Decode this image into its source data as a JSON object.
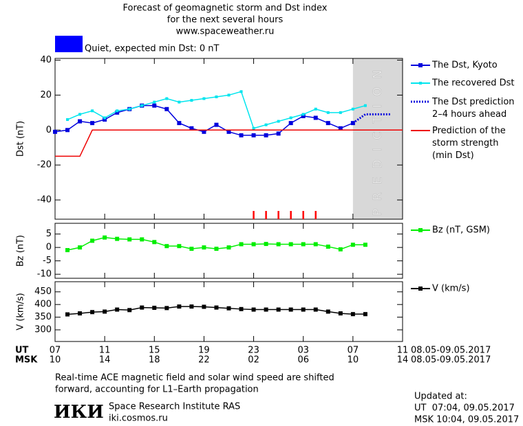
{
  "header": {
    "lines": [
      "Forecast of geomagnetic storm and Dst index",
      "for the next several hours",
      "www.spaceweather.ru"
    ],
    "status": {
      "color": "#0000ff",
      "text": "Quiet, expected min Dst: 0 nT"
    }
  },
  "chart_data": [
    {
      "type": "line",
      "ylabel": "Dst (nT)",
      "xlim": [
        0,
        28
      ],
      "ylim": [
        -51,
        41
      ],
      "yticks": [
        -40,
        -20,
        0,
        20,
        40
      ],
      "prediction_region": {
        "x": [
          24,
          28
        ],
        "label": "PREDICTION",
        "color": "#d8d8d8"
      },
      "storm_markers": {
        "color": "#ff0000",
        "x": [
          16,
          17,
          18,
          19,
          20,
          21
        ]
      },
      "series": [
        {
          "name": "The Dst, Kyoto",
          "color": "#0000dd",
          "marker": "square",
          "x": [
            0,
            1,
            2,
            3,
            4,
            5,
            6,
            7,
            8,
            9,
            10,
            11,
            12,
            13,
            14,
            15,
            16,
            17,
            18,
            19,
            20,
            21,
            22,
            23,
            24
          ],
          "values": [
            -1,
            0,
            5,
            4,
            6,
            10,
            12,
            14,
            14,
            12,
            4,
            1,
            -1,
            3,
            -1,
            -3,
            -3,
            -3,
            -2,
            4,
            8,
            7,
            4,
            1,
            4
          ]
        },
        {
          "name": "The recovered Dst",
          "color": "#00e5ee",
          "marker": "small-square",
          "x": [
            1,
            2,
            3,
            4,
            5,
            6,
            7,
            8,
            9,
            10,
            11,
            12,
            13,
            14,
            15,
            16,
            17,
            18,
            19,
            20,
            21,
            22,
            23,
            24,
            25
          ],
          "values": [
            6,
            9,
            11,
            7,
            11,
            12,
            14,
            16,
            18,
            16,
            17,
            18,
            19,
            20,
            22,
            1,
            3,
            5,
            7,
            9,
            12,
            10,
            10,
            12,
            14
          ]
        },
        {
          "name": "The Dst prediction\n2–4 hours ahead",
          "color": "#0000dd",
          "marker": "none",
          "dash": true,
          "x": [
            24,
            25,
            26,
            27
          ],
          "values": [
            4,
            9,
            9,
            9
          ]
        },
        {
          "name": "Prediction of the\nstorm strength\n(min Dst)",
          "color": "#ee0000",
          "marker": "none",
          "x": [
            0,
            2,
            3,
            28
          ],
          "values": [
            -15,
            -15,
            0,
            0
          ]
        }
      ]
    },
    {
      "type": "line",
      "ylabel": "Bz (nT)",
      "xlim": [
        0,
        28
      ],
      "ylim": [
        -11.5,
        9
      ],
      "yticks": [
        -10,
        -5,
        0,
        5
      ],
      "series": [
        {
          "name": "Bz (nT, GSM)",
          "color": "#00ee00",
          "marker": "square",
          "x": [
            1,
            2,
            3,
            4,
            5,
            6,
            7,
            8,
            9,
            10,
            11,
            12,
            13,
            14,
            15,
            16,
            17,
            18,
            19,
            20,
            21,
            22,
            23,
            24,
            25
          ],
          "values": [
            -1,
            0,
            2.5,
            3.7,
            3.2,
            3,
            3,
            2,
            0.5,
            0.5,
            -0.5,
            0,
            -0.5,
            0,
            1.2,
            1.2,
            1.3,
            1.2,
            1.2,
            1.2,
            1.2,
            0.3,
            -0.7,
            1,
            1
          ]
        }
      ]
    },
    {
      "type": "line",
      "ylabel": "V (km/s)",
      "xlim": [
        0,
        28
      ],
      "ylim": [
        254,
        490
      ],
      "yticks": [
        300,
        350,
        400,
        450
      ],
      "xlabel": "UT",
      "x2label": "MSK",
      "xlabel_right": "08.05-09.05.2017",
      "x2label_right": "08.05-09.05.2017",
      "xticks": [
        {
          "value": 0,
          "label": "07"
        },
        {
          "value": 4,
          "label": "11"
        },
        {
          "value": 8,
          "label": "15"
        },
        {
          "value": 12,
          "label": "19"
        },
        {
          "value": 16,
          "label": "23"
        },
        {
          "value": 20,
          "label": "03"
        },
        {
          "value": 24,
          "label": "07"
        },
        {
          "value": 28,
          "label": "11"
        }
      ],
      "x2ticks": [
        {
          "value": 0,
          "label": "10"
        },
        {
          "value": 4,
          "label": "14"
        },
        {
          "value": 8,
          "label": "18"
        },
        {
          "value": 12,
          "label": "22"
        },
        {
          "value": 16,
          "label": "02"
        },
        {
          "value": 20,
          "label": "06"
        },
        {
          "value": 24,
          "label": "10"
        },
        {
          "value": 28,
          "label": "14"
        }
      ],
      "series": [
        {
          "name": "V (km/s)",
          "color": "#000000",
          "marker": "square",
          "x": [
            1,
            2,
            3,
            4,
            5,
            6,
            7,
            8,
            9,
            10,
            11,
            12,
            13,
            14,
            15,
            16,
            17,
            18,
            19,
            20,
            21,
            22,
            23,
            24,
            25
          ],
          "values": [
            361,
            365,
            370,
            372,
            380,
            378,
            388,
            387,
            386,
            392,
            392,
            391,
            388,
            385,
            382,
            380,
            380,
            380,
            380,
            380,
            380,
            372,
            365,
            362,
            362
          ]
        }
      ]
    }
  ],
  "footer": {
    "note": [
      "Real-time ACE magnetic field and solar wind speed are shifted",
      "forward, accounting for L1–Earth propagation"
    ],
    "logo": "ИКИ",
    "institute": "Space Research Institute RAS",
    "site": "iki.cosmos.ru",
    "updated": [
      "Updated at:",
      "UT  07:04, 09.05.2017",
      "MSK 10:04, 09.05.2017"
    ]
  }
}
